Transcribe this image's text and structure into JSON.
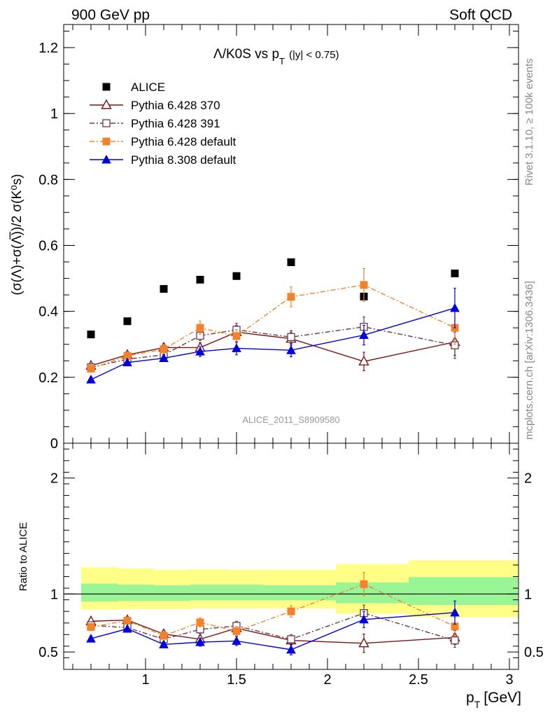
{
  "header": {
    "left": "900 GeV pp",
    "right": "Soft QCD"
  },
  "side_labels": {
    "rivet": "Rivet 3.1.10, ≥ 100k events",
    "mcplots": "mcplots.cern.ch [arXiv:1306.3436]"
  },
  "chart_data": [
    {
      "type": "scatter",
      "panel": "main",
      "title": "Λ/K0S vs p_T (|y| < 0.75)",
      "title_parts": {
        "main": "Λ/K0S vs p",
        "sub": "T",
        "cut": "(|y| < 0.75)"
      },
      "ylabel": "(σ(Λ)+σ(Λ̅))/2 σ(K⁰s)",
      "watermark": "ALICE_2011_S8909580",
      "xlim": [
        0.55,
        3.05
      ],
      "ylim": [
        0,
        1.27
      ],
      "yticks": [
        0,
        0.2,
        0.4,
        0.6,
        0.8,
        1,
        1.2
      ],
      "ytick_labels": [
        "0",
        "0.2",
        "0.4",
        "0.6",
        "0.8",
        "1",
        "1.2"
      ],
      "legend_position": "top-left",
      "x": [
        0.7,
        0.9,
        1.1,
        1.3,
        1.5,
        1.8,
        2.2,
        2.7
      ],
      "series": [
        {
          "name": "ALICE",
          "color": "#000000",
          "marker": "square-filled",
          "line": "none",
          "values": [
            0.33,
            0.37,
            0.468,
            0.496,
            0.507,
            0.549,
            0.445,
            0.515
          ],
          "errors": [
            0,
            0,
            0,
            0,
            0,
            0,
            0,
            0
          ]
        },
        {
          "name": "Pythia 6.428 370",
          "color": "#7b1416",
          "marker": "triangle-open",
          "line": "solid",
          "values": [
            0.235,
            0.268,
            0.29,
            0.29,
            0.337,
            0.317,
            0.248,
            0.307
          ],
          "errors": [
            0.008,
            0.008,
            0.012,
            0.015,
            0.02,
            0.02,
            0.028,
            0.04
          ]
        },
        {
          "name": "Pythia 6.428 391",
          "color": "#6a3a45",
          "marker": "square-open",
          "line": "dashdot",
          "values": [
            0.23,
            0.255,
            0.268,
            0.326,
            0.344,
            0.322,
            0.353,
            0.297
          ],
          "errors": [
            0.008,
            0.008,
            0.012,
            0.015,
            0.02,
            0.02,
            0.03,
            0.04
          ]
        },
        {
          "name": "Pythia 6.428 default",
          "color": "#f5822a",
          "marker": "square-filled",
          "line": "dashdot",
          "values": [
            0.226,
            0.265,
            0.285,
            0.35,
            0.325,
            0.444,
            0.48,
            0.35
          ],
          "errors": [
            0.008,
            0.01,
            0.015,
            0.02,
            0.02,
            0.03,
            0.05,
            0.05
          ]
        },
        {
          "name": "Pythia 8.308 default",
          "color": "#0000dd",
          "marker": "triangle-filled",
          "line": "solid",
          "values": [
            0.193,
            0.245,
            0.258,
            0.278,
            0.288,
            0.282,
            0.328,
            0.41
          ],
          "errors": [
            0.008,
            0.008,
            0.01,
            0.015,
            0.02,
            0.02,
            0.03,
            0.06
          ]
        }
      ]
    },
    {
      "type": "line",
      "panel": "ratio",
      "ylabel": "Ratio to ALICE",
      "xlabel": "p_T [GeV]",
      "xlabel_parts": {
        "main": "p",
        "sub": "T",
        "unit": "[GeV]"
      },
      "xlim": [
        0.55,
        3.05
      ],
      "ylim": [
        0.35,
        2.3
      ],
      "xticks": [
        1,
        1.5,
        2,
        2.5,
        3
      ],
      "xtick_labels": [
        "1",
        "1.5",
        "2",
        "2.5",
        "3"
      ],
      "yticks": [
        0.5,
        1,
        2
      ],
      "ytick_labels": [
        "0.5",
        "1",
        "2"
      ],
      "reference_line": 1,
      "bands": {
        "yellow_color": "#ffff88",
        "green_color": "#99f595",
        "edges": [
          0.6,
          0.8,
          1.0,
          1.2,
          1.4,
          1.6,
          2.0,
          2.4,
          3.0
        ],
        "yellow": [
          [
            0.865,
            1.23
          ],
          [
            0.87,
            1.22
          ],
          [
            0.87,
            1.21
          ],
          [
            0.875,
            1.215
          ],
          [
            0.875,
            1.21
          ],
          [
            0.875,
            1.21
          ],
          [
            0.83,
            1.26
          ],
          [
            0.8,
            1.29
          ]
        ],
        "green": [
          [
            0.935,
            1.09
          ],
          [
            0.94,
            1.08
          ],
          [
            0.94,
            1.075
          ],
          [
            0.945,
            1.08
          ],
          [
            0.945,
            1.08
          ],
          [
            0.945,
            1.075
          ],
          [
            0.92,
            1.1
          ],
          [
            0.905,
            1.145
          ]
        ]
      },
      "x": [
        0.7,
        0.9,
        1.1,
        1.3,
        1.5,
        1.8,
        2.2,
        2.7
      ],
      "series": [
        {
          "name": "Pythia 6.428 370",
          "color": "#7b1416",
          "marker": "triangle-open",
          "line": "solid",
          "values": [
            0.765,
            0.775,
            0.655,
            0.61,
            0.705,
            0.6,
            0.575,
            0.625
          ],
          "errors": [
            0.02,
            0.02,
            0.03,
            0.035,
            0.04,
            0.04,
            0.08,
            0.06
          ]
        },
        {
          "name": "Pythia 6.428 391",
          "color": "#6a3a45",
          "marker": "square-open",
          "line": "dashdot",
          "values": [
            0.73,
            0.71,
            0.61,
            0.695,
            0.725,
            0.61,
            0.835,
            0.6
          ],
          "errors": [
            0.02,
            0.02,
            0.03,
            0.035,
            0.04,
            0.04,
            0.07,
            0.06
          ]
        },
        {
          "name": "Pythia 6.428 default",
          "color": "#f5822a",
          "marker": "square-filled",
          "line": "dashdot",
          "values": [
            0.715,
            0.77,
            0.64,
            0.755,
            0.68,
            0.85,
            1.085,
            0.72
          ],
          "errors": [
            0.02,
            0.025,
            0.03,
            0.04,
            0.04,
            0.05,
            0.1,
            0.08
          ]
        },
        {
          "name": "Pythia 8.308 default",
          "color": "#0000dd",
          "marker": "triangle-filled",
          "line": "solid",
          "values": [
            0.615,
            0.7,
            0.565,
            0.585,
            0.595,
            0.52,
            0.78,
            0.84
          ],
          "errors": [
            0.02,
            0.02,
            0.025,
            0.035,
            0.04,
            0.045,
            0.07,
            0.1
          ]
        }
      ]
    }
  ]
}
